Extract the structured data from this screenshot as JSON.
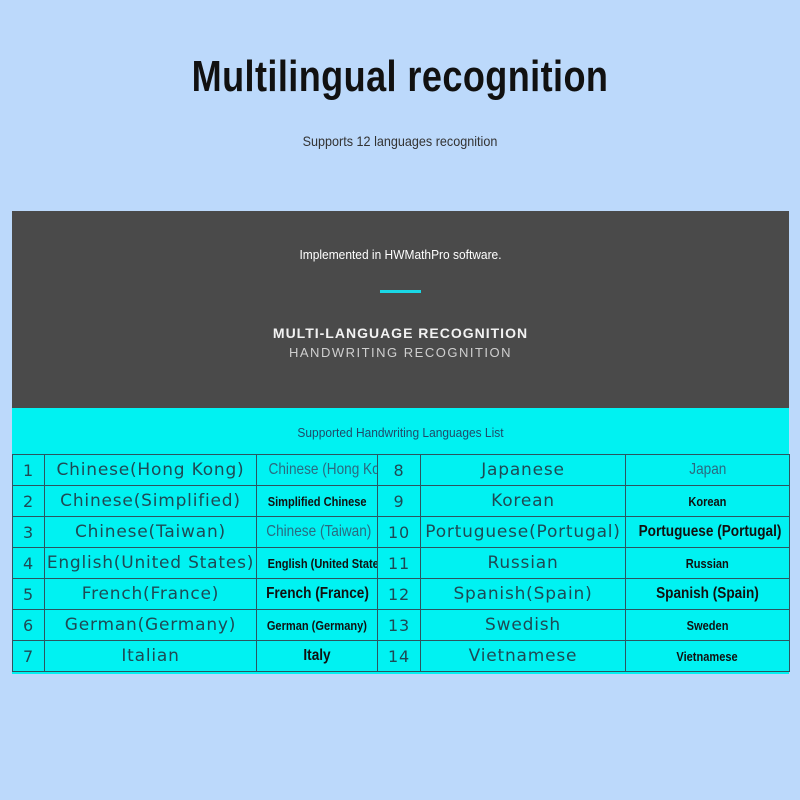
{
  "title": "Multilingual recognition",
  "subtitle": "Supports 12 languages recognition",
  "banner": {
    "implemented": "Implemented in HWMathPro software.",
    "heading": "MULTI-LANGUAGE RECOGNITION",
    "subheading": "HANDWRITING  RECOGNITION",
    "accent": "#19d8e6"
  },
  "list": {
    "heading": "Supported Handwriting Languages List",
    "left": [
      {
        "num": "1",
        "name": "Chinese(Hong Kong)",
        "alt": "Chinese (Hong Kong)"
      },
      {
        "num": "2",
        "name": "Chinese(Simplified)",
        "alt": "Simplified Chinese"
      },
      {
        "num": "3",
        "name": "Chinese(Taiwan)",
        "alt": "Chinese (Taiwan)"
      },
      {
        "num": "4",
        "name": "English(United States)",
        "alt": "English (United States)"
      },
      {
        "num": "5",
        "name": "French(France)",
        "alt": "French (France)"
      },
      {
        "num": "6",
        "name": "German(Germany)",
        "alt": "German (Germany)"
      },
      {
        "num": "7",
        "name": "Italian",
        "alt": "Italy"
      }
    ],
    "right": [
      {
        "num": "8",
        "name": "Japanese",
        "alt": "Japan"
      },
      {
        "num": "9",
        "name": "Korean",
        "alt": "Korean"
      },
      {
        "num": "10",
        "name": "Portuguese(Portugal)",
        "alt": "Portuguese (Portugal)"
      },
      {
        "num": "11",
        "name": "Russian",
        "alt": "Russian"
      },
      {
        "num": "12",
        "name": "Spanish(Spain)",
        "alt": "Spanish (Spain)"
      },
      {
        "num": "13",
        "name": "Swedish",
        "alt": "Sweden"
      },
      {
        "num": "14",
        "name": "Vietnamese",
        "alt": "Vietnamese"
      }
    ]
  }
}
